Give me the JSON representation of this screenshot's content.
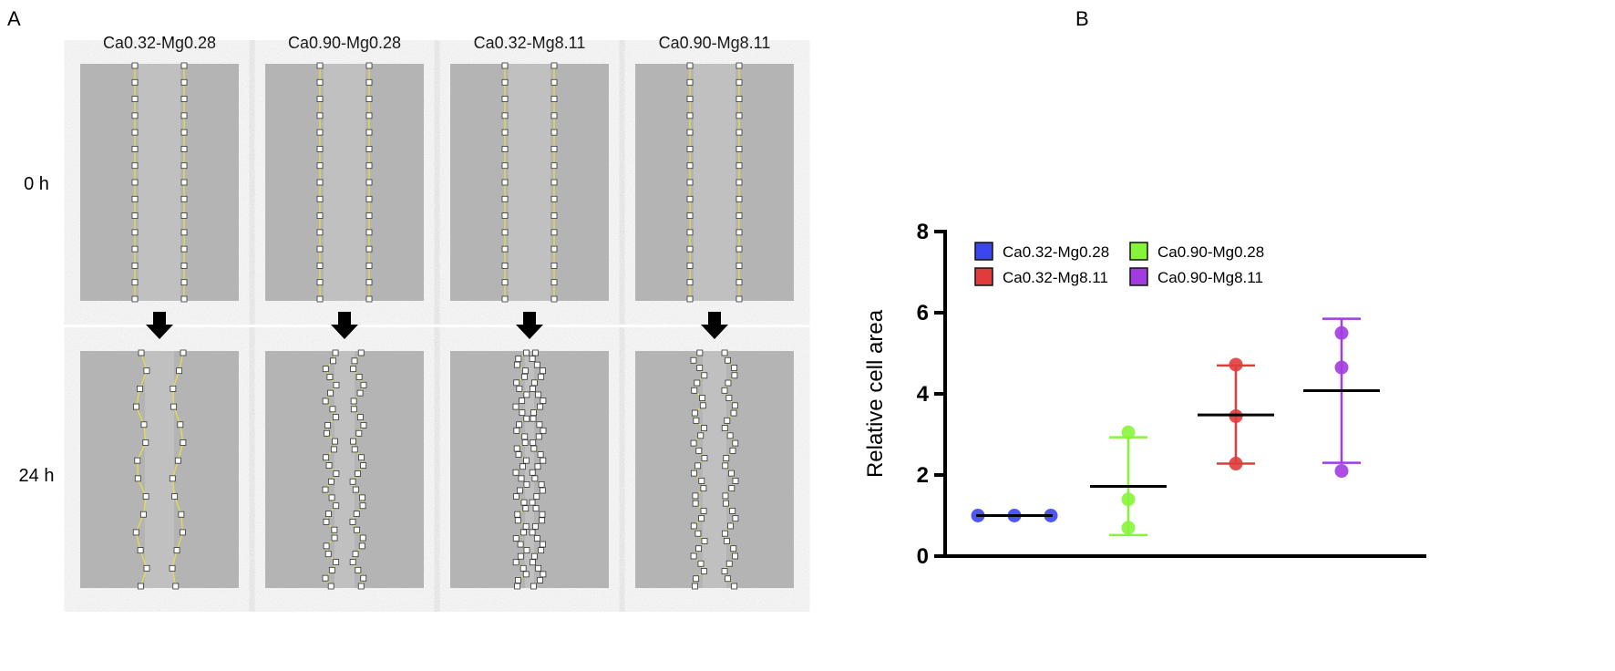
{
  "panel_a": {
    "label": "A",
    "columns": [
      "Ca0.32-Mg0.28",
      "Ca0.90-Mg0.28",
      "Ca0.32-Mg8.11",
      "Ca0.90-Mg8.11"
    ],
    "rows": [
      "0 h",
      "24 h"
    ],
    "outline_color": "#e8e040"
  },
  "chart_data": {
    "label": "B",
    "type": "scatter",
    "ylabel": "Relative cell area",
    "xlabel": "",
    "ylim": [
      0,
      8
    ],
    "yticks": [
      "0",
      "2",
      "4",
      "6",
      "8"
    ],
    "legend_position": "top",
    "series": [
      {
        "name": "Ca0.32-Mg0.28",
        "color": "#3b45f0",
        "points": [
          1.0,
          1.0,
          1.0
        ],
        "mean": 1.0,
        "error": [
          1.0,
          1.0
        ]
      },
      {
        "name": "Ca0.90-Mg0.28",
        "color": "#86f53a",
        "points": [
          3.05,
          1.4,
          0.7
        ],
        "mean": 1.72,
        "error": [
          0.52,
          2.93
        ]
      },
      {
        "name": "Ca0.32-Mg8.11",
        "color": "#e03c3c",
        "points": [
          4.72,
          3.45,
          2.28
        ],
        "mean": 3.48,
        "error": [
          2.28,
          4.7
        ]
      },
      {
        "name": "Ca0.90-Mg8.11",
        "color": "#a23ce0",
        "points": [
          5.5,
          4.65,
          2.1
        ],
        "mean": 4.08,
        "error": [
          2.3,
          5.85
        ]
      }
    ]
  }
}
